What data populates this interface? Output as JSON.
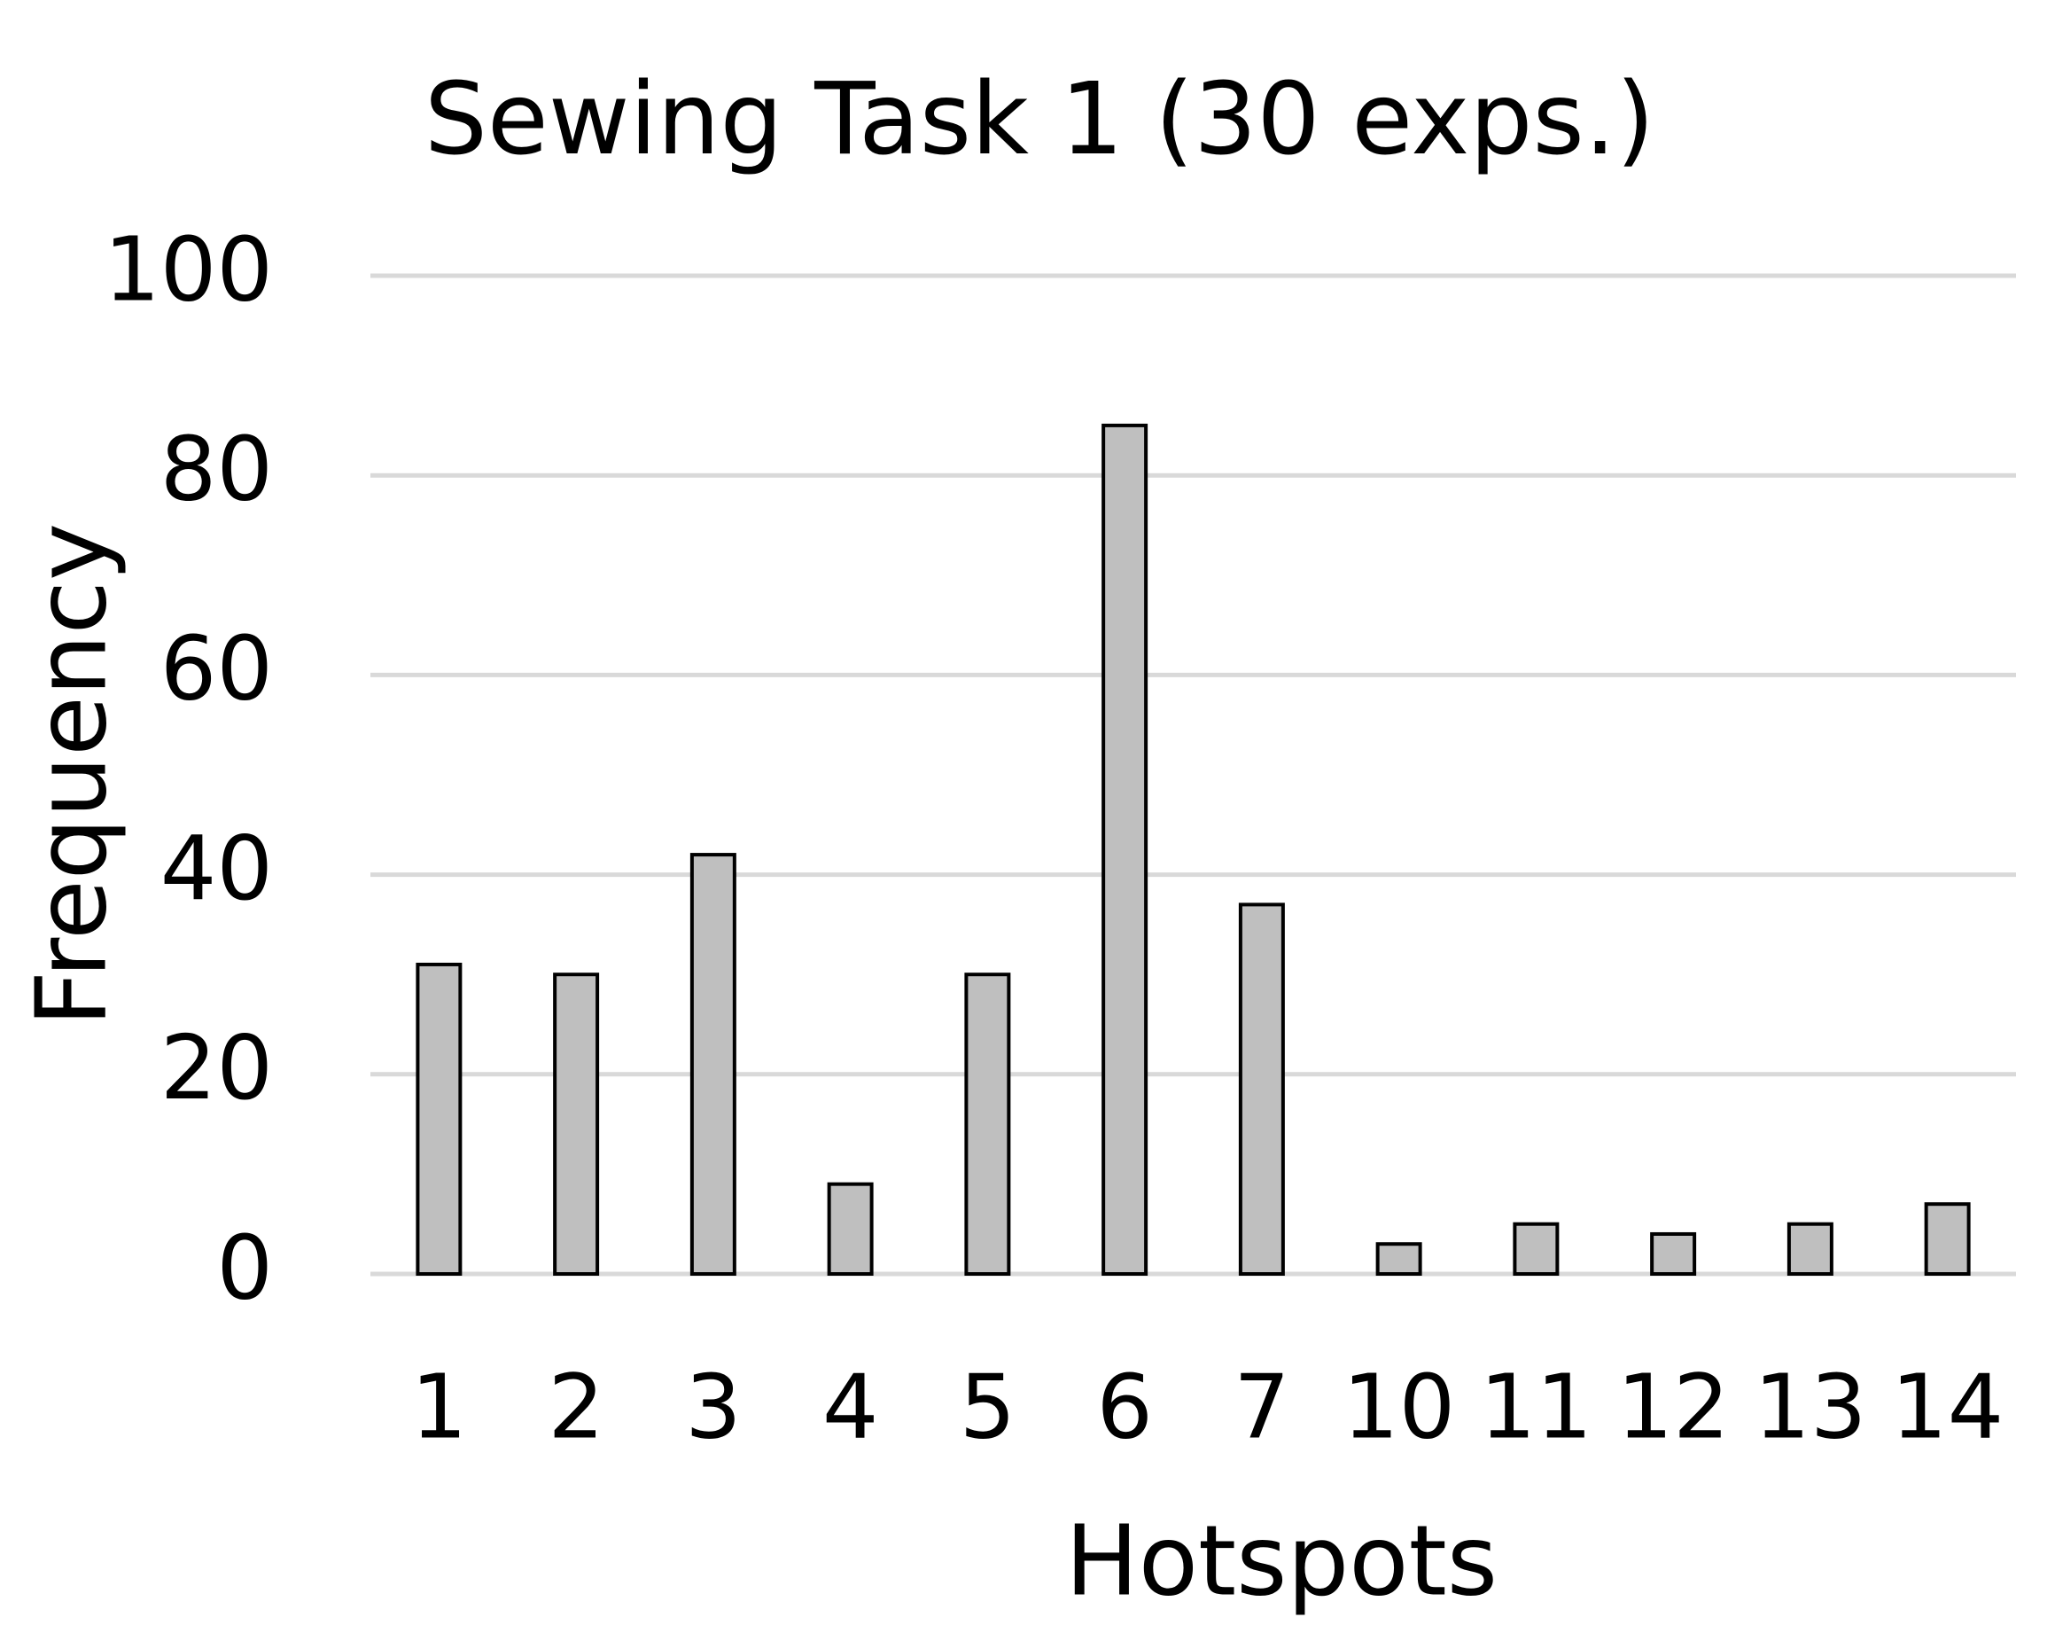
{
  "chart_data": {
    "type": "bar",
    "title": "Sewing Task 1 (30 exps.)",
    "x_label": "Hotspots",
    "y_label": "Frequency",
    "categories": [
      "1",
      "2",
      "3",
      "4",
      "5",
      "6",
      "7",
      "10",
      "11",
      "12",
      "13",
      "14"
    ],
    "values": [
      31,
      30,
      42,
      9,
      30,
      85,
      37,
      3,
      5,
      4,
      5,
      7
    ],
    "color": "#bfbfbf",
    "ylim": [
      0,
      100
    ],
    "yticks": [
      0,
      20,
      40,
      60,
      80,
      100
    ],
    "grid": true
  }
}
